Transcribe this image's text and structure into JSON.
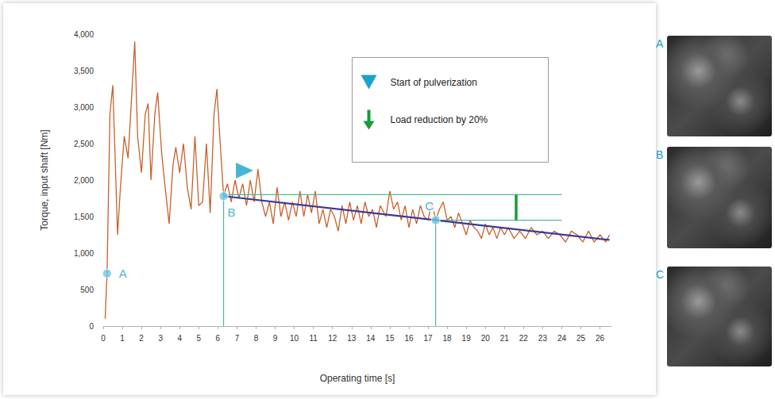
{
  "chart_data": {
    "type": "line",
    "x_label": "Operating time [s]",
    "y_label": "Torque, input shaft [Nm]",
    "xlim": [
      0,
      26.6
    ],
    "xticks": [
      0,
      1,
      2,
      3,
      4,
      5,
      6,
      7,
      8,
      9,
      10,
      11,
      12,
      13,
      14,
      15,
      16,
      17,
      18,
      19,
      20,
      21,
      22,
      23,
      24,
      25,
      26
    ],
    "ylim": [
      0,
      4000
    ],
    "yticks": [
      0,
      500,
      {
        "value": 1000,
        "label": "1,000"
      },
      {
        "value": 1500,
        "label": "1,500"
      },
      {
        "value": 2000,
        "label": "2,000"
      },
      {
        "value": 2500,
        "label": "2,500"
      },
      {
        "value": 3000,
        "label": "3,000"
      },
      {
        "value": 3500,
        "label": "3,500"
      },
      {
        "value": 4000,
        "label": "4,000"
      }
    ],
    "grid": false,
    "series": [
      {
        "color": "#c8602a",
        "x": [
          0.1,
          0.2,
          0.35,
          0.5,
          0.6,
          0.75,
          0.9,
          1.1,
          1.3,
          1.5,
          1.65,
          1.8,
          2.0,
          2.2,
          2.35,
          2.5,
          2.7,
          2.85,
          3.05,
          3.2,
          3.45,
          3.65,
          3.8,
          4.0,
          4.2,
          4.4,
          4.6,
          4.8,
          5.0,
          5.2,
          5.4,
          5.6,
          5.8,
          5.95,
          6.1,
          6.3,
          6.5,
          6.7,
          6.9,
          7.1,
          7.3,
          7.5,
          7.7,
          7.9,
          8.1,
          8.3,
          8.5,
          8.7,
          8.9,
          9.1,
          9.3,
          9.5,
          9.7,
          9.9,
          10.1,
          10.3,
          10.5,
          10.7,
          10.9,
          11.1,
          11.3,
          11.5,
          11.7,
          11.9,
          12.1,
          12.3,
          12.5,
          12.7,
          12.9,
          13.1,
          13.3,
          13.5,
          13.7,
          13.9,
          14.1,
          14.3,
          14.5,
          14.8,
          15.0,
          15.2,
          15.4,
          15.6,
          15.8,
          16.0,
          16.2,
          16.4,
          16.6,
          16.8,
          17.0,
          17.2,
          17.4,
          17.6,
          17.8,
          18.0,
          18.2,
          18.4,
          18.6,
          18.8,
          19.0,
          19.2,
          19.4,
          19.6,
          19.8,
          20.0,
          20.2,
          20.4,
          20.6,
          20.8,
          21.0,
          21.2,
          21.5,
          21.8,
          22.1,
          22.4,
          22.7,
          23.0,
          23.3,
          23.6,
          23.9,
          24.2,
          24.5,
          24.8,
          25.1,
          25.4,
          25.7,
          26.0,
          26.3,
          26.5
        ],
        "values": [
          100,
          720,
          2900,
          3300,
          2500,
          1250,
          1900,
          2600,
          2300,
          3200,
          3900,
          2600,
          2100,
          2900,
          3050,
          2000,
          2900,
          3200,
          2400,
          2000,
          1400,
          2200,
          2450,
          2100,
          2500,
          1900,
          1600,
          2600,
          1650,
          1700,
          2500,
          1550,
          2900,
          3250,
          2600,
          1780,
          1950,
          1700,
          2000,
          1750,
          1950,
          1650,
          2000,
          1700,
          2150,
          1700,
          1500,
          1700,
          1400,
          1900,
          1500,
          1700,
          1450,
          1700,
          1500,
          1850,
          1500,
          1800,
          1550,
          1850,
          1400,
          1600,
          1350,
          1600,
          1500,
          1300,
          1650,
          1400,
          1700,
          1450,
          1650,
          1400,
          1700,
          1500,
          1600,
          1350,
          1650,
          1500,
          1850,
          1600,
          1700,
          1450,
          1650,
          1350,
          1600,
          1400,
          1650,
          1500,
          1450,
          1700,
          1450,
          1600,
          1700,
          1450,
          1500,
          1350,
          1550,
          1400,
          1250,
          1450,
          1350,
          1300,
          1200,
          1400,
          1250,
          1350,
          1200,
          1350,
          1250,
          1350,
          1200,
          1300,
          1200,
          1350,
          1250,
          1300,
          1200,
          1300,
          1250,
          1150,
          1300,
          1250,
          1150,
          1300,
          1150,
          1250,
          1150,
          1250
        ]
      },
      {
        "color": "#3a3a9a",
        "x": [
          6.3,
          26.5
        ],
        "values": [
          1780,
          1180
        ]
      }
    ],
    "guide_lines": {
      "color": "#4fb89a",
      "lines": [
        {
          "x": [
            6.3,
            6.3
          ],
          "y": [
            0,
            1780
          ]
        },
        {
          "x": [
            6.3,
            24
          ],
          "y": [
            1800,
            1800
          ]
        },
        {
          "x": [
            17.4,
            17.4
          ],
          "y": [
            0,
            1450
          ]
        },
        {
          "x": [
            17.4,
            24
          ],
          "y": [
            1450,
            1450
          ]
        }
      ]
    },
    "points": {
      "color": "#6ec6e6",
      "items": [
        {
          "label": "A",
          "x": 0.2,
          "y": 720
        },
        {
          "label": "B",
          "x": 6.3,
          "y": 1780
        },
        {
          "label": "C",
          "x": 17.4,
          "y": 1450
        }
      ]
    },
    "pulverization_start": {
      "x": 7.4,
      "y": 2130,
      "color": "#1aa3cc",
      "marker": "triangle_right"
    },
    "load_reduction": {
      "x": 21.6,
      "from": 1800,
      "to": 1450,
      "color": "#1a9a3a"
    },
    "legend": "top",
    "legend_items": [
      {
        "label": "Start of pulverization",
        "marker": "triangle_down",
        "color": "#1aa3cc"
      },
      {
        "label": "Load reduction by 20%",
        "marker": "arrow_down",
        "color": "#1a9a3a"
      }
    ]
  },
  "images": [
    {
      "label": "A"
    },
    {
      "label": "B"
    },
    {
      "label": "C"
    }
  ]
}
